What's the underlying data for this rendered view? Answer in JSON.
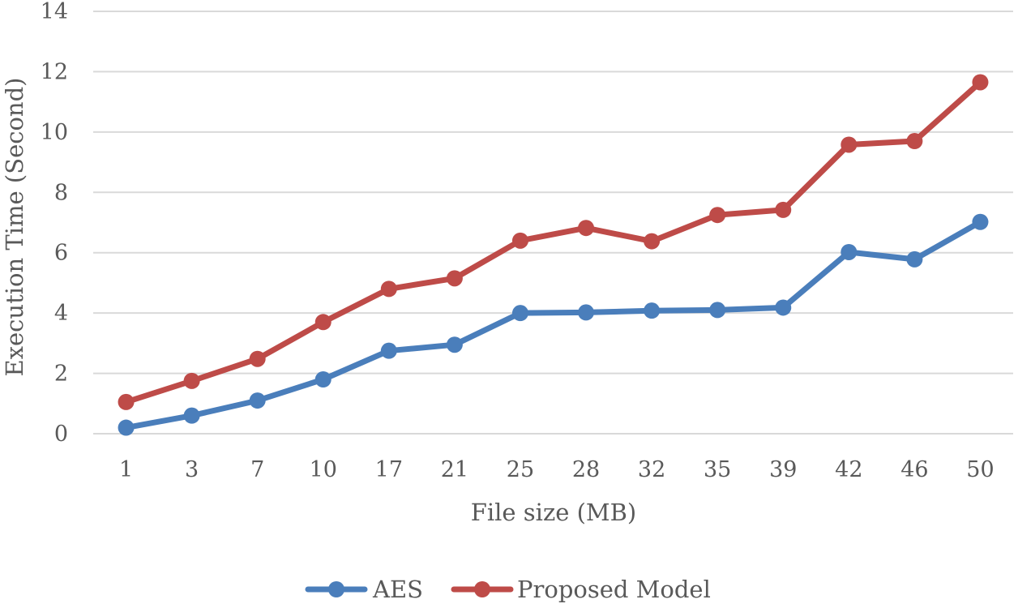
{
  "chart_data": {
    "type": "line",
    "title": "",
    "xlabel": "File size (MB)",
    "ylabel": "Execution Time (Second)",
    "categories": [
      "1",
      "3",
      "7",
      "10",
      "17",
      "21",
      "25",
      "28",
      "32",
      "35",
      "39",
      "42",
      "46",
      "50"
    ],
    "ylim": [
      0,
      14
    ],
    "yticks": [
      0,
      2,
      4,
      6,
      8,
      10,
      12,
      14
    ],
    "grid": true,
    "legend_position": "bottom",
    "series": [
      {
        "name": "AES",
        "color": "#4a7ebb",
        "values": [
          0.2,
          0.6,
          1.1,
          1.8,
          2.75,
          2.95,
          4.0,
          4.02,
          4.08,
          4.1,
          4.18,
          6.02,
          5.78,
          7.02
        ]
      },
      {
        "name": "Proposed Model",
        "color": "#be4b48",
        "values": [
          1.05,
          1.75,
          2.48,
          3.7,
          4.8,
          5.15,
          6.4,
          6.82,
          6.38,
          7.25,
          7.42,
          9.58,
          9.7,
          11.65
        ]
      }
    ]
  }
}
